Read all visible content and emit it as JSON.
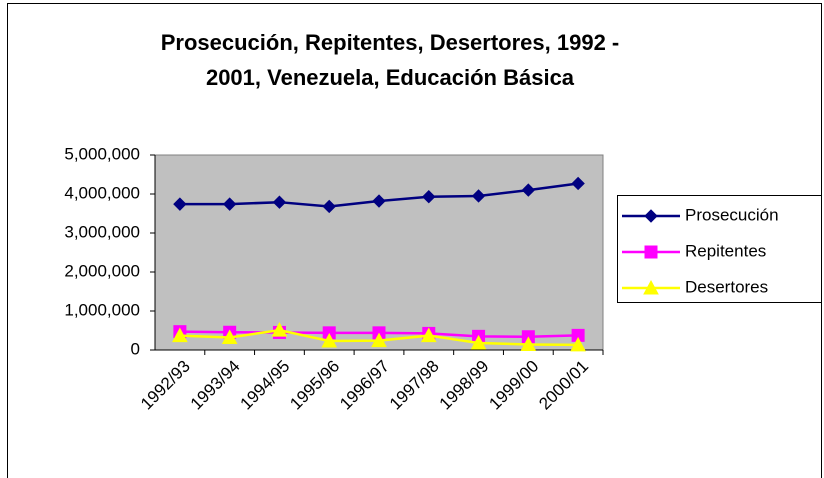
{
  "chart_data": {
    "type": "line",
    "title": [
      "Prosecución, Repitentes, Desertores, 1992 -",
      "2001, Venezuela, Educación Básica"
    ],
    "categories": [
      "1992/93",
      "1993/94",
      "1994/95",
      "1995/96",
      "1996/97",
      "1997/98",
      "1998/99",
      "1999/00",
      "2000/01"
    ],
    "series": [
      {
        "name": "Prosecución",
        "color": "#000080",
        "marker": "diamond",
        "values": [
          3740000,
          3740000,
          3790000,
          3680000,
          3820000,
          3930000,
          3950000,
          4100000,
          4270000
        ]
      },
      {
        "name": "Repitentes",
        "color": "#ff00ff",
        "marker": "square",
        "values": [
          470000,
          455000,
          450000,
          440000,
          440000,
          425000,
          350000,
          340000,
          375000
        ]
      },
      {
        "name": "Desertores",
        "color": "#ffff00",
        "marker": "triangle",
        "values": [
          370000,
          320000,
          510000,
          230000,
          240000,
          370000,
          180000,
          140000,
          130000
        ]
      }
    ],
    "ylim": [
      0,
      5000000
    ],
    "yticks": [
      0,
      {
        "value": 1000000,
        "label": "1,000,000"
      },
      {
        "value": 2000000,
        "label": "2,000,000"
      },
      {
        "value": 3000000,
        "label": "3,000,000"
      },
      {
        "value": 4000000,
        "label": "4,000,000"
      },
      {
        "value": 5000000,
        "label": "5,000,000"
      }
    ],
    "plot_background": "#c0c0c0",
    "legend": "right"
  }
}
